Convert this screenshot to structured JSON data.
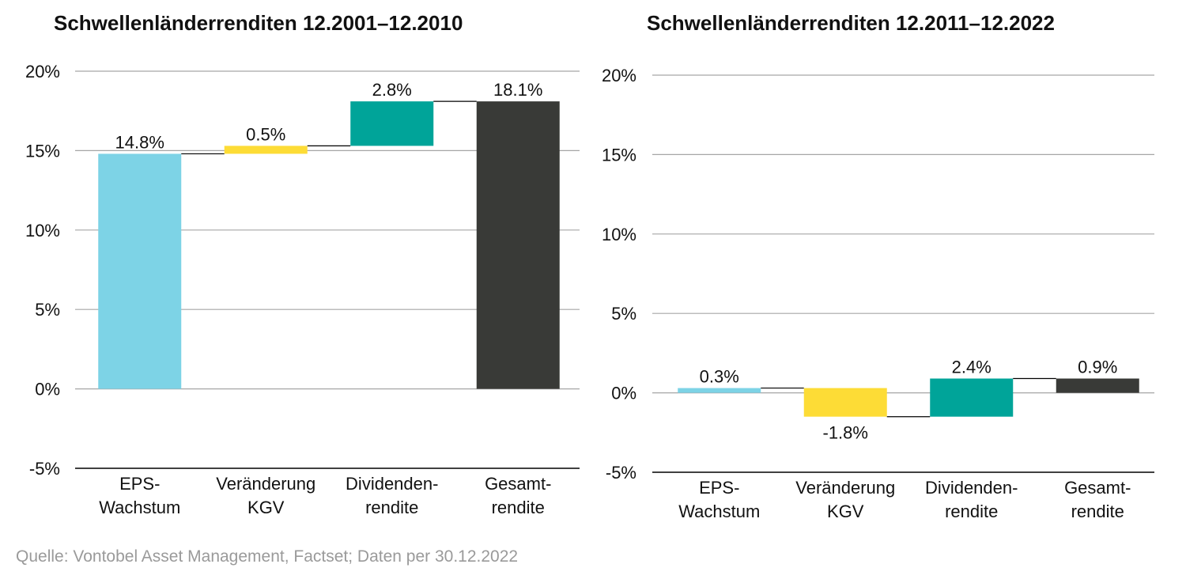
{
  "chart_data": [
    {
      "type": "bar",
      "title": "Schwellenländerrenditen 12.2001–12.2010",
      "categories": [
        [
          "EPS-",
          "Wachstum"
        ],
        [
          "Veränderung",
          "KGV"
        ],
        [
          "Dividenden-",
          "rendite"
        ],
        [
          "Gesamt-",
          "rendite"
        ]
      ],
      "values": [
        14.8,
        0.5,
        2.8,
        18.1
      ],
      "value_labels": [
        "14.8%",
        "0.5%",
        "2.8%",
        "18.1%"
      ],
      "ylim": [
        -5,
        20
      ],
      "yticks": [
        "20%",
        "15%",
        "10%",
        "5%",
        "0%",
        "-5%"
      ],
      "grid": true
    },
    {
      "type": "bar",
      "title": "Schwellenländerrenditen 12.2011–12.2022",
      "categories": [
        [
          "EPS-",
          "Wachstum"
        ],
        [
          "Veränderung",
          "KGV"
        ],
        [
          "Dividenden-",
          "rendite"
        ],
        [
          "Gesamt-",
          "rendite"
        ]
      ],
      "values": [
        0.3,
        -1.8,
        2.4,
        0.9
      ],
      "value_labels": [
        "0.3%",
        "-1.8%",
        "2.4%",
        "0.9%"
      ],
      "ylim": [
        -5,
        20
      ],
      "yticks": [
        "20%",
        "15%",
        "10%",
        "5%",
        "0%",
        "-5%"
      ],
      "grid": true
    }
  ],
  "colors": {
    "eps": "#7dd3e6",
    "kgv": "#fddc36",
    "dividend": "#00a499",
    "total": "#393a37",
    "grid": "#a6a6a6",
    "axis": "#000000"
  },
  "source": "Quelle: Vontobel Asset Management, Factset; Daten per 30.12.2022"
}
